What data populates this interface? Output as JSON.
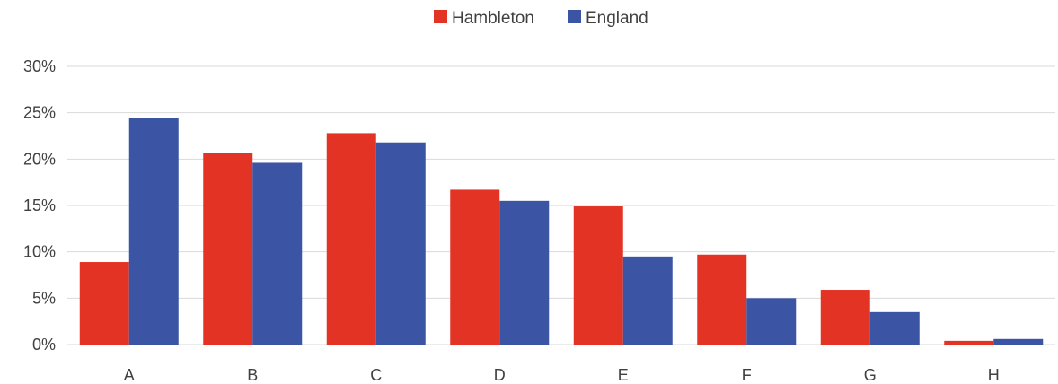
{
  "chart_data": {
    "type": "bar",
    "categories": [
      "A",
      "B",
      "C",
      "D",
      "E",
      "F",
      "G",
      "H"
    ],
    "series": [
      {
        "name": "Hambleton",
        "color": "#e33324",
        "values": [
          8.9,
          20.7,
          22.8,
          16.7,
          14.9,
          9.7,
          5.9,
          0.4
        ]
      },
      {
        "name": "England",
        "color": "#3b54a4",
        "values": [
          24.4,
          19.6,
          21.8,
          15.5,
          9.5,
          5.0,
          3.5,
          0.6
        ]
      }
    ],
    "y_ticks": [
      "0%",
      "5%",
      "10%",
      "15%",
      "20%",
      "25%",
      "30%"
    ],
    "ylim": [
      0,
      30
    ],
    "y_unit": "%",
    "grid": true,
    "legend_position": "top-center",
    "title": "",
    "xlabel": "",
    "ylabel": ""
  }
}
